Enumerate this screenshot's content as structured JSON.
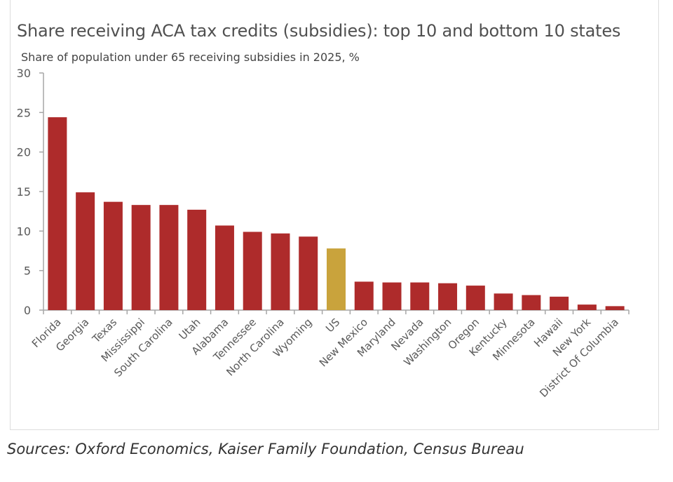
{
  "chart_data": {
    "type": "bar",
    "title": "Share receiving ACA tax credits (subsidies): top 10 and bottom 10 states",
    "subtitle": "Share of population under 65 receiving subsidies in 2025, %",
    "categories": [
      "Florida",
      "Georgia",
      "Texas",
      "Mississippi",
      "South Carolina",
      "Utah",
      "Alabama",
      "Tennessee",
      "North Carolina",
      "Wyoming",
      "US",
      "New Mexico",
      "Maryland",
      "Nevada",
      "Washington",
      "Oregon",
      "Kentucky",
      "Minnesota",
      "Hawaii",
      "New York",
      "District Of Columbia"
    ],
    "values": [
      24.4,
      14.9,
      13.7,
      13.3,
      13.3,
      12.7,
      10.7,
      9.9,
      9.7,
      9.3,
      7.8,
      3.6,
      3.5,
      3.5,
      3.4,
      3.1,
      2.1,
      1.9,
      1.7,
      0.7,
      0.5
    ],
    "ylim": [
      0,
      30
    ],
    "yticks": [
      "0",
      "5",
      "10",
      "15",
      "20",
      "25",
      "30"
    ],
    "grid": false,
    "colors": {
      "state": "#ae2b2b",
      "us": "#c9a33c"
    },
    "highlight": "US"
  },
  "source": "Sources: Oxford Economics, Kaiser Family Foundation, Census Bureau"
}
